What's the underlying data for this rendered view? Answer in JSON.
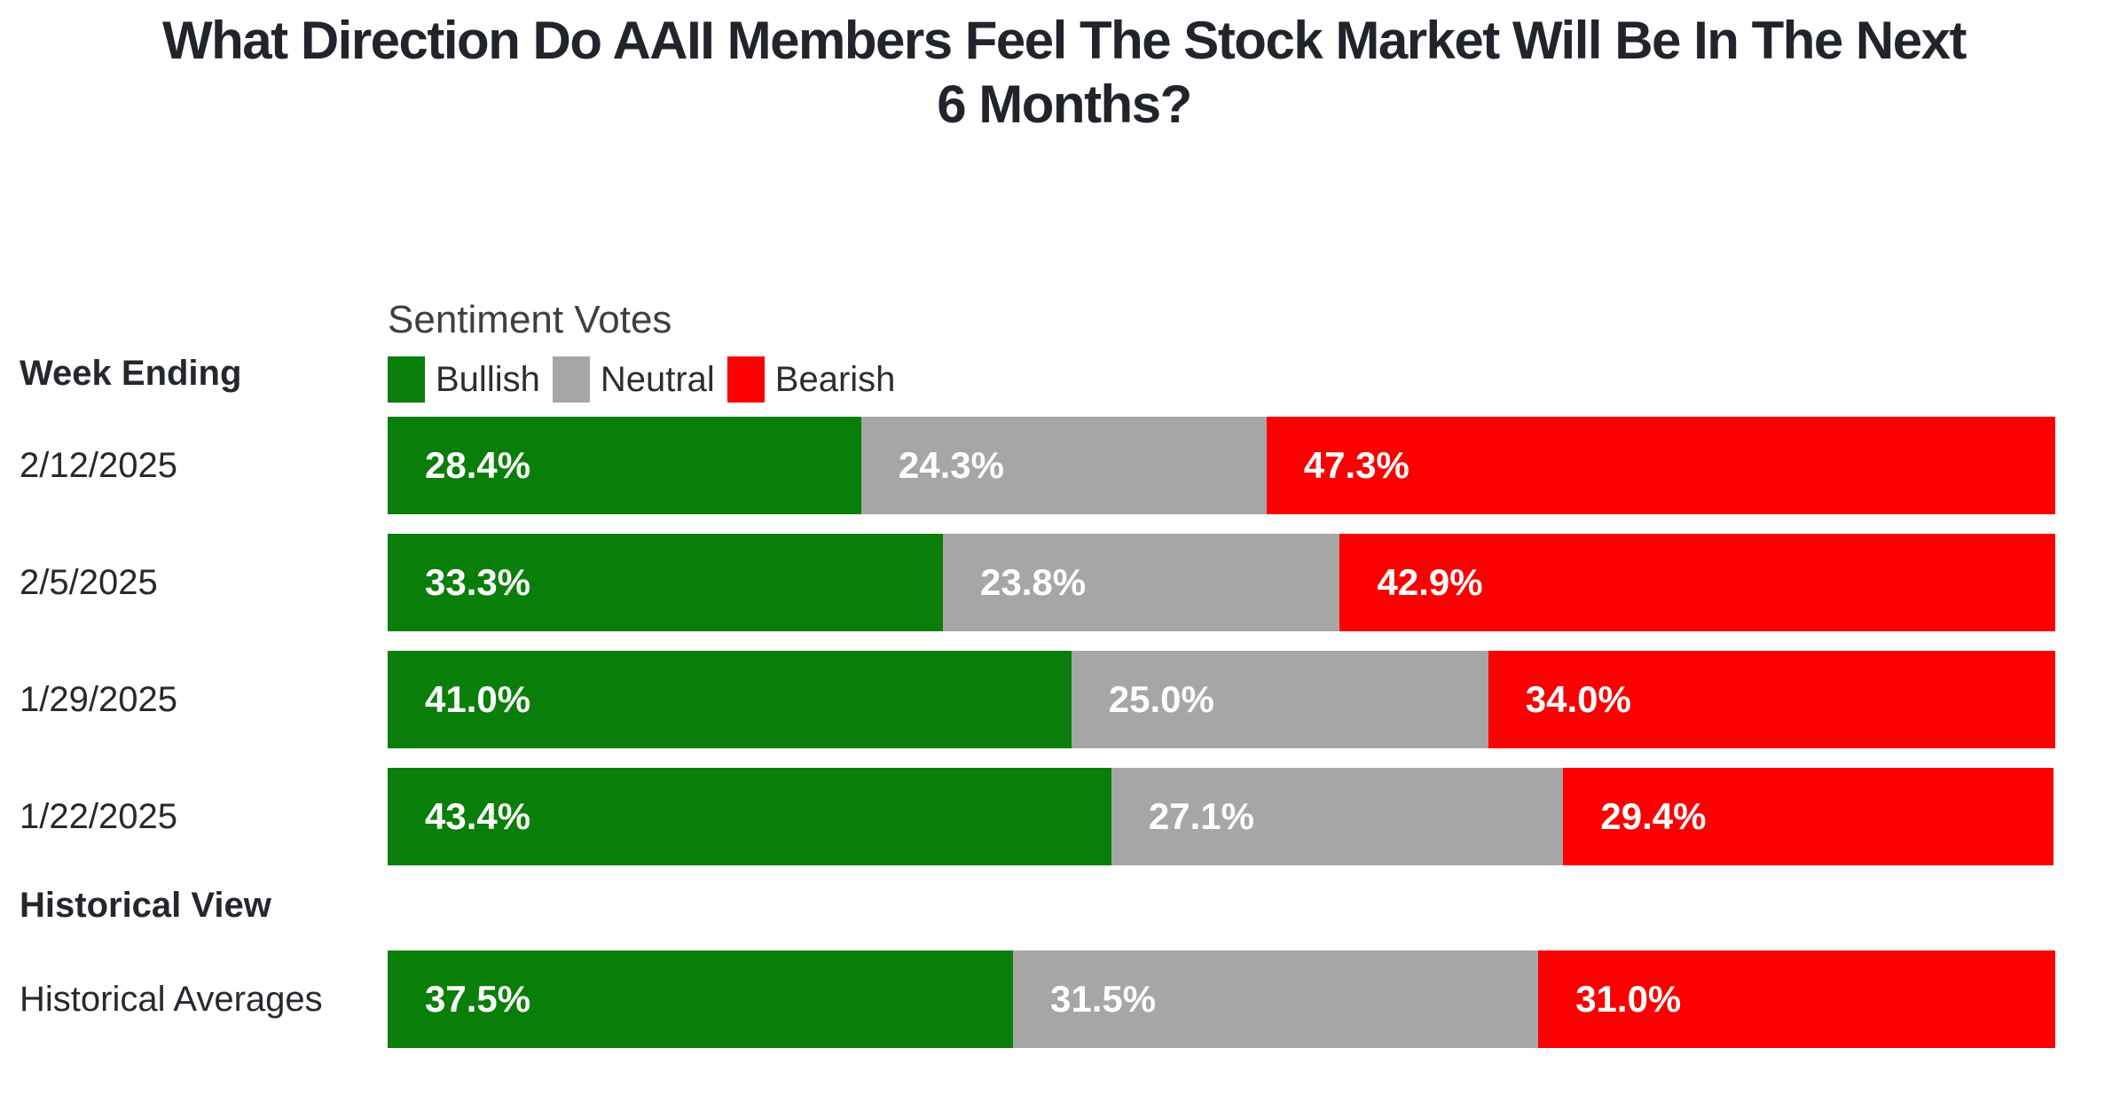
{
  "title": {
    "line1": "What Direction Do AAII Members Feel The Stock Market Will Be In The Next",
    "line2": "6 Months?"
  },
  "labels": {
    "week_ending": "Week Ending",
    "historical_view": "Historical View"
  },
  "legend": {
    "title": "Sentiment Votes"
  },
  "colors": {
    "bullish": "#097E09",
    "neutral": "#A6A6A6",
    "bearish": "#FA0000",
    "title_text": "#21252b",
    "bar_value_text": "#ffffff"
  },
  "chart_data": {
    "type": "bar",
    "stacked": true,
    "orientation": "horizontal",
    "title": "What Direction Do AAII Members Feel The Stock Market Will Be In The Next 6 Months?",
    "legend_title": "Sentiment Votes",
    "legend_position": "top",
    "value_suffix": "%",
    "xlim": [
      0,
      100
    ],
    "grid": false,
    "categories": [
      "2/12/2025",
      "2/5/2025",
      "1/29/2025",
      "1/22/2025"
    ],
    "series": [
      {
        "name": "Bullish",
        "color": "#097E09",
        "values": [
          28.4,
          33.3,
          41.0,
          43.4
        ],
        "historical_average": 37.5
      },
      {
        "name": "Neutral",
        "color": "#A6A6A6",
        "values": [
          24.3,
          23.8,
          25.0,
          27.1
        ],
        "historical_average": 31.5
      },
      {
        "name": "Bearish",
        "color": "#FA0000",
        "values": [
          47.3,
          42.9,
          34.0,
          29.4
        ],
        "historical_average": 31.0
      }
    ],
    "historical_section_label": "Historical View",
    "historical_category": "Historical Averages",
    "data_labels": [
      [
        "28.4%",
        "24.3%",
        "47.3%"
      ],
      [
        "33.3%",
        "23.8%",
        "42.9%"
      ],
      [
        "41.0%",
        "25.0%",
        "34.0%"
      ],
      [
        "43.4%",
        "27.1%",
        "29.4%"
      ]
    ],
    "historical_data_labels": [
      "37.5%",
      "31.5%",
      "31.0%"
    ]
  }
}
